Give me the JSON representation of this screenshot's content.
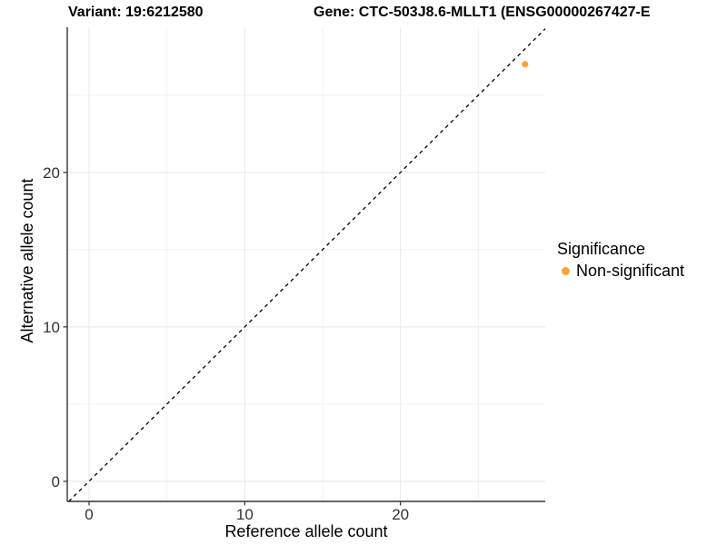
{
  "chart_data": {
    "type": "scatter",
    "title_left": "Variant: 19:6212580",
    "title_right": "Gene: CTC-503J8.6-MLLT1 (ENSG00000267427-E",
    "xlabel": "Reference allele count",
    "ylabel": "Alternative allele count",
    "xlim": [
      -1.4,
      29.3
    ],
    "ylim": [
      -1.3,
      29.4
    ],
    "xticks": [
      0,
      10,
      20
    ],
    "yticks": [
      0,
      10,
      20
    ],
    "xticks_minor": [
      5,
      15,
      25
    ],
    "yticks_minor": [
      5,
      15,
      25
    ],
    "grid": "major and minor, light gray on white",
    "identity_line": {
      "type": "y=x",
      "style": "dashed",
      "color": "#000000"
    },
    "points": [
      {
        "x": 28,
        "y": 27,
        "significance": "Non-significant"
      }
    ],
    "legend": {
      "title": "Significance",
      "position": "right",
      "items": [
        {
          "label": "Non-significant",
          "color": "#F9A43A"
        }
      ]
    },
    "colors": {
      "point": "#F9A43A",
      "axis": "#333333",
      "tick_label": "#333333",
      "grid_major": "#E8E8E8",
      "grid_minor": "#F2F2F2",
      "background": "#FFFFFF"
    }
  }
}
